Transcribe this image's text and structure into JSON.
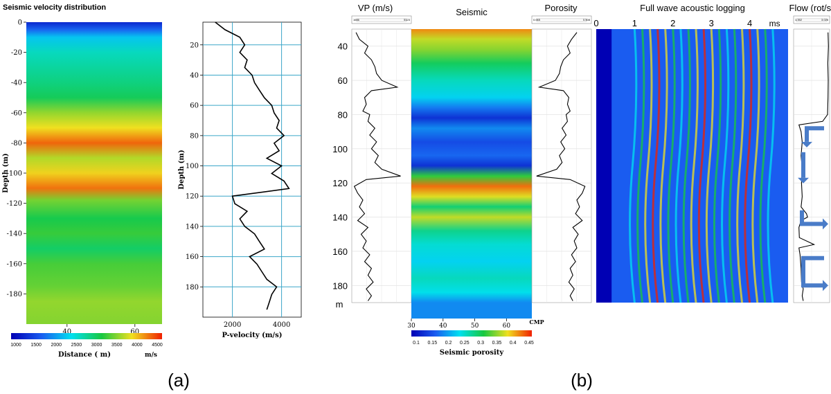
{
  "panel_a": {
    "caption": "(a)",
    "section": {
      "title": "Seismic velocity distribution",
      "ylabel": "Depth (m)",
      "yticks": [
        "0",
        "-20",
        "-40",
        "-60",
        "-80",
        "-100",
        "-120",
        "-140",
        "-160",
        "-180"
      ],
      "xticks": [
        "40",
        "60"
      ],
      "colorbar_ticks": [
        "1000",
        "1500",
        "2000",
        "2500",
        "3000",
        "3500",
        "4000",
        "4500"
      ],
      "colorbar_label": "Distance ( m)",
      "colorbar_unit": "m/s"
    },
    "log": {
      "ylabel": "Depth (m)",
      "xlabel": "P-velocity (m/s)",
      "yticks": [
        "20",
        "40",
        "60",
        "80",
        "100",
        "120",
        "140",
        "160",
        "180"
      ],
      "xticks": [
        "2000",
        "4000"
      ]
    }
  },
  "panel_b": {
    "caption": "(b)",
    "vp": {
      "title": "VP (m/s)",
      "scale_min": "1656",
      "scale_max": "5123"
    },
    "seismic": {
      "title": "Seismic",
      "xticks": [
        "30",
        "40",
        "50",
        "60"
      ],
      "xunit": "CMP",
      "colorbar_ticks": [
        "0.1",
        "0.15",
        "0.2",
        "0.25",
        "0.3",
        "0.35",
        "0.4",
        "0.45"
      ],
      "colorbar_label": "Seismic porosity"
    },
    "porosity": {
      "title": "Porosity",
      "scale_min": "0.065",
      "scale_max": "0.508"
    },
    "fwal": {
      "title": "Full wave acoustic logging",
      "time_ticks": [
        "0",
        "1",
        "2",
        "3",
        "4"
      ],
      "time_unit": "ms"
    },
    "flow": {
      "title": "Flow (rot/s)",
      "scale_min": "1.352",
      "scale_max": "3.025"
    },
    "depth_ticks": [
      "40",
      "60",
      "80",
      "100",
      "120",
      "140",
      "160",
      "180"
    ],
    "depth_unit": "m"
  },
  "colors": {
    "jet_dark_blue": "#0000b4",
    "jet_blue": "#1a5cf0",
    "jet_cyan": "#00e0f0",
    "jet_green": "#18c840",
    "jet_yellow": "#f0e020",
    "jet_red": "#f02000",
    "grid_cyan": "#3aa6c8",
    "flow_arrow": "#4a7cc8"
  },
  "chart_data": [
    {
      "type": "heatmap",
      "title": "Seismic velocity distribution",
      "ylabel": "Depth (m)",
      "xlabel": "Distance ( m)",
      "colorbar_unit": "m/s",
      "ylim": [
        -200,
        0
      ],
      "xlim": [
        28,
        68
      ],
      "color_range": [
        1000,
        4500
      ],
      "depth_profile": [
        {
          "depth": 0,
          "value": 1300
        },
        {
          "depth": -5,
          "value": 1750
        },
        {
          "depth": -10,
          "value": 2250
        },
        {
          "depth": -20,
          "value": 2600
        },
        {
          "depth": -40,
          "value": 2850
        },
        {
          "depth": -50,
          "value": 3000
        },
        {
          "depth": -60,
          "value": 3500
        },
        {
          "depth": -70,
          "value": 3800
        },
        {
          "depth": -80,
          "value": 4250
        },
        {
          "depth": -90,
          "value": 3600
        },
        {
          "depth": -100,
          "value": 3850
        },
        {
          "depth": -110,
          "value": 4200
        },
        {
          "depth": -118,
          "value": 3400
        },
        {
          "depth": -130,
          "value": 3050
        },
        {
          "depth": -140,
          "value": 3200
        },
        {
          "depth": -150,
          "value": 2950
        },
        {
          "depth": -160,
          "value": 3250
        },
        {
          "depth": -175,
          "value": 3350
        },
        {
          "depth": -185,
          "value": 3500
        },
        {
          "depth": -200,
          "value": 3450
        }
      ]
    },
    {
      "type": "line",
      "xlabel": "P-velocity (m/s)",
      "ylabel": "Depth (m)",
      "xlim": [
        800,
        4800
      ],
      "ylim": [
        200,
        5
      ],
      "points": [
        [
          5,
          1300
        ],
        [
          10,
          1700
        ],
        [
          15,
          2300
        ],
        [
          20,
          2500
        ],
        [
          25,
          2300
        ],
        [
          30,
          2600
        ],
        [
          35,
          2500
        ],
        [
          40,
          2800
        ],
        [
          45,
          2900
        ],
        [
          50,
          3100
        ],
        [
          55,
          3300
        ],
        [
          60,
          3600
        ],
        [
          65,
          3700
        ],
        [
          70,
          3900
        ],
        [
          75,
          3800
        ],
        [
          80,
          4100
        ],
        [
          85,
          3700
        ],
        [
          90,
          3900
        ],
        [
          95,
          3400
        ],
        [
          100,
          4000
        ],
        [
          105,
          3600
        ],
        [
          110,
          4100
        ],
        [
          115,
          4300
        ],
        [
          120,
          2000
        ],
        [
          125,
          2100
        ],
        [
          130,
          2600
        ],
        [
          135,
          2300
        ],
        [
          140,
          2500
        ],
        [
          145,
          2900
        ],
        [
          150,
          3100
        ],
        [
          155,
          3300
        ],
        [
          160,
          2700
        ],
        [
          165,
          3000
        ],
        [
          170,
          3200
        ],
        [
          175,
          3400
        ],
        [
          180,
          3800
        ],
        [
          185,
          3600
        ],
        [
          190,
          3500
        ],
        [
          195,
          3400
        ]
      ]
    },
    {
      "type": "line",
      "title": "VP (m/s)",
      "xlim": [
        1656,
        5123
      ],
      "ylim": [
        30,
        190
      ],
      "points": [
        [
          32,
          1900
        ],
        [
          36,
          2100
        ],
        [
          40,
          2600
        ],
        [
          44,
          2400
        ],
        [
          48,
          2800
        ],
        [
          52,
          3000
        ],
        [
          56,
          3100
        ],
        [
          60,
          3400
        ],
        [
          64,
          4300
        ],
        [
          66,
          2800
        ],
        [
          70,
          2400
        ],
        [
          74,
          2500
        ],
        [
          78,
          2300
        ],
        [
          80,
          2700
        ],
        [
          84,
          2600
        ],
        [
          88,
          3000
        ],
        [
          92,
          2700
        ],
        [
          96,
          3100
        ],
        [
          100,
          2800
        ],
        [
          104,
          3200
        ],
        [
          108,
          3000
        ],
        [
          112,
          3400
        ],
        [
          116,
          4500
        ],
        [
          118,
          2500
        ],
        [
          122,
          1800
        ],
        [
          126,
          2000
        ],
        [
          130,
          2300
        ],
        [
          134,
          2100
        ],
        [
          138,
          2400
        ],
        [
          142,
          2000
        ],
        [
          146,
          2600
        ],
        [
          150,
          2200
        ],
        [
          154,
          2500
        ],
        [
          158,
          2300
        ],
        [
          162,
          2700
        ],
        [
          166,
          2400
        ],
        [
          170,
          2800
        ],
        [
          174,
          2600
        ],
        [
          178,
          2900
        ],
        [
          182,
          2500
        ],
        [
          186,
          2800
        ],
        [
          189,
          2600
        ]
      ]
    },
    {
      "type": "heatmap",
      "title": "Seismic",
      "xlabel": "CMP",
      "colorbar_label": "Seismic porosity",
      "xlim": [
        30,
        68
      ],
      "ylim": [
        30,
        190
      ],
      "color_range": [
        0.08,
        0.45
      ],
      "depth_profile": [
        {
          "depth": 30,
          "value": 0.41
        },
        {
          "depth": 36,
          "value": 0.36
        },
        {
          "depth": 42,
          "value": 0.34
        },
        {
          "depth": 50,
          "value": 0.29
        },
        {
          "depth": 60,
          "value": 0.25
        },
        {
          "depth": 70,
          "value": 0.22
        },
        {
          "depth": 76,
          "value": 0.17
        },
        {
          "depth": 82,
          "value": 0.12
        },
        {
          "depth": 88,
          "value": 0.18
        },
        {
          "depth": 96,
          "value": 0.14
        },
        {
          "depth": 104,
          "value": 0.16
        },
        {
          "depth": 110,
          "value": 0.12
        },
        {
          "depth": 116,
          "value": 0.31
        },
        {
          "depth": 122,
          "value": 0.42
        },
        {
          "depth": 128,
          "value": 0.37
        },
        {
          "depth": 134,
          "value": 0.28
        },
        {
          "depth": 140,
          "value": 0.36
        },
        {
          "depth": 148,
          "value": 0.27
        },
        {
          "depth": 156,
          "value": 0.24
        },
        {
          "depth": 166,
          "value": 0.22
        },
        {
          "depth": 176,
          "value": 0.25
        },
        {
          "depth": 184,
          "value": 0.23
        },
        {
          "depth": 190,
          "value": 0.18
        }
      ]
    },
    {
      "type": "line",
      "title": "Porosity",
      "xlim": [
        0.065,
        0.508
      ],
      "ylim": [
        30,
        190
      ],
      "points": [
        [
          32,
          0.4
        ],
        [
          36,
          0.36
        ],
        [
          40,
          0.33
        ],
        [
          44,
          0.35
        ],
        [
          48,
          0.3
        ],
        [
          52,
          0.28
        ],
        [
          56,
          0.27
        ],
        [
          60,
          0.24
        ],
        [
          64,
          0.12
        ],
        [
          66,
          0.3
        ],
        [
          70,
          0.34
        ],
        [
          74,
          0.33
        ],
        [
          78,
          0.35
        ],
        [
          80,
          0.32
        ],
        [
          84,
          0.33
        ],
        [
          88,
          0.29
        ],
        [
          92,
          0.32
        ],
        [
          96,
          0.28
        ],
        [
          100,
          0.31
        ],
        [
          104,
          0.27
        ],
        [
          108,
          0.29
        ],
        [
          112,
          0.25
        ],
        [
          116,
          0.1
        ],
        [
          118,
          0.35
        ],
        [
          122,
          0.46
        ],
        [
          126,
          0.44
        ],
        [
          130,
          0.4
        ],
        [
          134,
          0.42
        ],
        [
          138,
          0.39
        ],
        [
          142,
          0.44
        ],
        [
          146,
          0.37
        ],
        [
          150,
          0.41
        ],
        [
          154,
          0.38
        ],
        [
          158,
          0.4
        ],
        [
          162,
          0.36
        ],
        [
          166,
          0.39
        ],
        [
          170,
          0.35
        ],
        [
          174,
          0.37
        ],
        [
          178,
          0.34
        ],
        [
          182,
          0.38
        ],
        [
          186,
          0.35
        ],
        [
          189,
          0.37
        ]
      ]
    },
    {
      "type": "heatmap",
      "title": "Full wave acoustic logging",
      "xlabel": "ms",
      "xlim": [
        0,
        5
      ],
      "ylim": [
        30,
        190
      ],
      "first_arrival_ms": 0.4
    },
    {
      "type": "line",
      "title": "Flow (rot/s)",
      "xlim": [
        1.352,
        3.025
      ],
      "ylim": [
        30,
        190
      ],
      "points": [
        [
          32,
          2.95
        ],
        [
          40,
          2.97
        ],
        [
          50,
          2.94
        ],
        [
          60,
          2.96
        ],
        [
          70,
          2.95
        ],
        [
          80,
          2.93
        ],
        [
          84,
          2.7
        ],
        [
          86,
          1.6
        ],
        [
          90,
          1.7
        ],
        [
          96,
          1.75
        ],
        [
          104,
          1.7
        ],
        [
          112,
          1.75
        ],
        [
          120,
          1.72
        ],
        [
          128,
          1.75
        ],
        [
          134,
          1.7
        ],
        [
          138,
          1.95
        ],
        [
          140,
          2.0
        ],
        [
          142,
          1.7
        ],
        [
          146,
          1.6
        ],
        [
          152,
          1.62
        ],
        [
          156,
          2.3
        ],
        [
          158,
          1.6
        ],
        [
          162,
          1.65
        ],
        [
          170,
          1.7
        ],
        [
          178,
          1.72
        ],
        [
          182,
          1.8
        ],
        [
          186,
          1.75
        ],
        [
          189,
          1.8
        ]
      ]
    }
  ]
}
